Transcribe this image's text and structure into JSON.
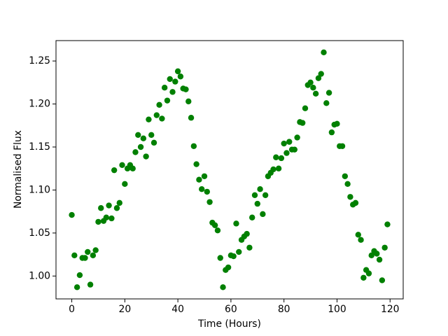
{
  "chart_data": {
    "type": "scatter",
    "x_label": "Time (Hours)",
    "y_label": "Normalised Flux",
    "xlim": [
      -5.95,
      124.95
    ],
    "ylim": [
      0.9734,
      1.2737
    ],
    "xticks": [
      0,
      20,
      40,
      60,
      80,
      100,
      120
    ],
    "yticks": [
      {
        "value": 1.0,
        "label": "1.00"
      },
      {
        "value": 1.05,
        "label": "1.05"
      },
      {
        "value": 1.1,
        "label": "1.10"
      },
      {
        "value": 1.15,
        "label": "1.15"
      },
      {
        "value": 1.2,
        "label": "1.20"
      },
      {
        "value": 1.25,
        "label": "1.25"
      }
    ],
    "series": [
      {
        "color": "#008000",
        "x": [
          0,
          1,
          2,
          3,
          4,
          5,
          6,
          7,
          8,
          9,
          10,
          11,
          12,
          13,
          14,
          15,
          16,
          17,
          18,
          19,
          20,
          21,
          22,
          23,
          24,
          25,
          26,
          27,
          28,
          29,
          30,
          31,
          32,
          33,
          34,
          35,
          36,
          37,
          38,
          39,
          40,
          41,
          42,
          43,
          44,
          45,
          46,
          47,
          48,
          49,
          50,
          51,
          52,
          53,
          54,
          55,
          56,
          57,
          58,
          59,
          60,
          61,
          62,
          63,
          64,
          65,
          66,
          67,
          68,
          69,
          70,
          71,
          72,
          73,
          74,
          75,
          76,
          77,
          78,
          79,
          80,
          81,
          82,
          83,
          84,
          85,
          86,
          87,
          88,
          89,
          90,
          91,
          92,
          93,
          94,
          95,
          96,
          97,
          98,
          99,
          100,
          101,
          102,
          103,
          104,
          105,
          106,
          107,
          108,
          109,
          110,
          111,
          112,
          113,
          114,
          115,
          116,
          117,
          118,
          119
        ],
        "values": [
          1.071,
          1.024,
          0.987,
          1.001,
          1.021,
          1.021,
          1.028,
          0.99,
          1.024,
          1.03,
          1.063,
          1.079,
          1.064,
          1.068,
          1.082,
          1.067,
          1.123,
          1.079,
          1.085,
          1.129,
          1.107,
          1.125,
          1.129,
          1.125,
          1.144,
          1.164,
          1.15,
          1.16,
          1.139,
          1.182,
          1.164,
          1.155,
          1.187,
          1.199,
          1.183,
          1.219,
          1.204,
          1.229,
          1.214,
          1.226,
          1.238,
          1.232,
          1.218,
          1.217,
          1.203,
          1.184,
          1.151,
          1.13,
          1.112,
          1.101,
          1.116,
          1.098,
          1.086,
          1.062,
          1.059,
          1.053,
          1.021,
          0.987,
          1.007,
          1.01,
          1.024,
          1.023,
          1.061,
          1.028,
          1.042,
          1.046,
          1.049,
          1.033,
          1.068,
          1.094,
          1.084,
          1.101,
          1.072,
          1.094,
          1.116,
          1.12,
          1.124,
          1.138,
          1.125,
          1.137,
          1.154,
          1.143,
          1.156,
          1.147,
          1.147,
          1.161,
          1.179,
          1.178,
          1.195,
          1.222,
          1.225,
          1.219,
          1.212,
          1.23,
          1.235,
          1.26,
          1.201,
          1.213,
          1.167,
          1.176,
          1.177,
          1.151,
          1.151,
          1.116,
          1.107,
          1.092,
          1.083,
          1.085,
          1.048,
          1.042,
          0.998,
          1.007,
          1.003,
          1.024,
          1.029,
          1.026,
          1.019,
          0.995,
          1.033,
          1.06
        ]
      }
    ]
  }
}
